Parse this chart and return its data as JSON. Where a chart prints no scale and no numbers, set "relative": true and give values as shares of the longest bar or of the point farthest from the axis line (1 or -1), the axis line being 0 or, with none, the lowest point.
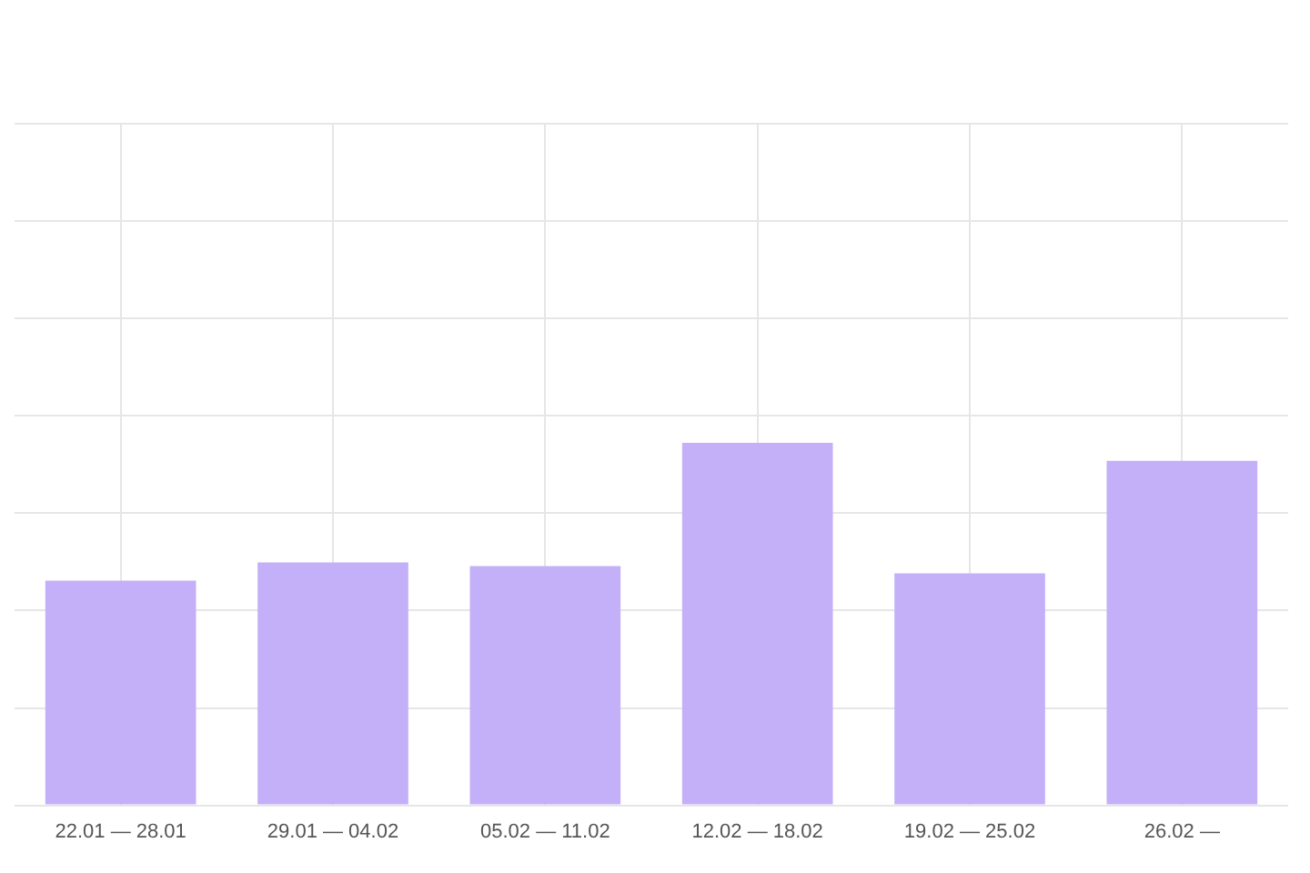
{
  "chart_data": {
    "type": "bar",
    "relative": true,
    "categories": [
      "22.01 — 28.01",
      "29.01 — 04.02",
      "05.02 — 11.02",
      "12.02 — 18.02",
      "19.02 — 25.02",
      "26.02 —"
    ],
    "values": [
      0.62,
      0.67,
      0.66,
      1,
      0.64,
      0.95
    ],
    "color": "#c4b0f8",
    "grid": true,
    "tick_labels": "x"
  }
}
